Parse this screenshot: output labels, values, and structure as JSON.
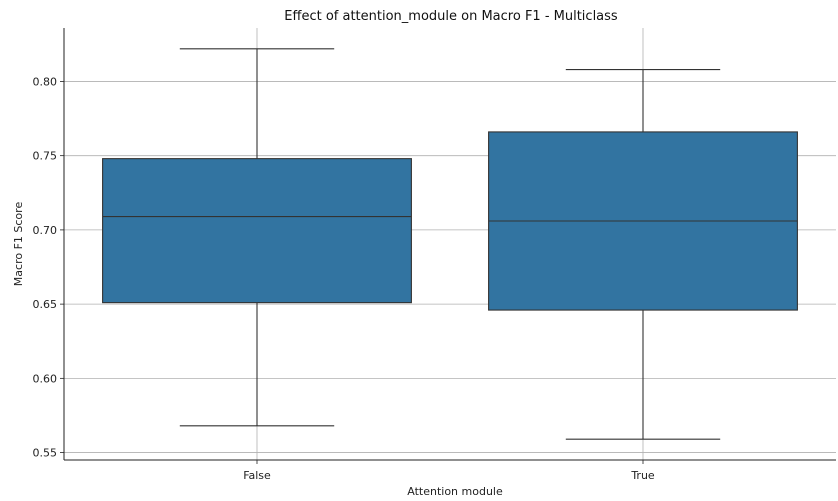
{
  "chart_data": {
    "type": "box",
    "title": "Effect of attention_module on Macro F1 - Multiclass",
    "xlabel": "Attention module",
    "ylabel": "Macro F1 Score",
    "categories": [
      "False",
      "True"
    ],
    "ylim": [
      0.545,
      0.836
    ],
    "yticks": [
      0.55,
      0.6,
      0.65,
      0.7,
      0.75,
      0.8
    ],
    "ytick_labels": [
      "0.55",
      "0.60",
      "0.65",
      "0.70",
      "0.75",
      "0.80"
    ],
    "grid": true,
    "box_color": "#3274a1",
    "edge_color": "#333333",
    "boxes": [
      {
        "category": "False",
        "whisker_low": 0.568,
        "q1": 0.651,
        "median": 0.709,
        "q3": 0.748,
        "whisker_high": 0.822
      },
      {
        "category": "True",
        "whisker_low": 0.559,
        "q1": 0.646,
        "median": 0.706,
        "q3": 0.766,
        "whisker_high": 0.808
      }
    ]
  }
}
